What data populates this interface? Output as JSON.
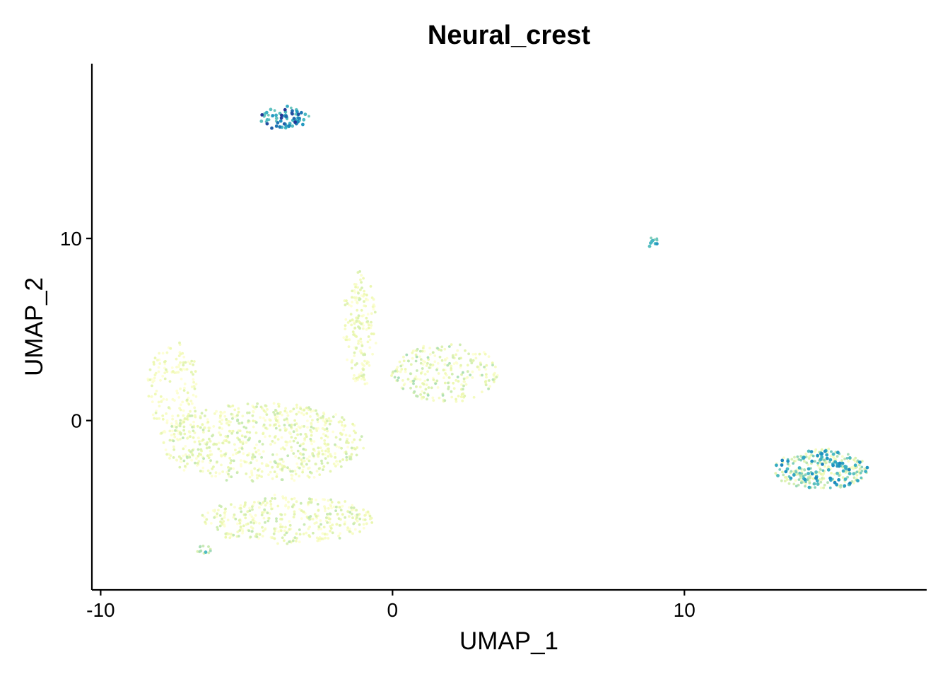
{
  "chart_data": {
    "type": "scatter",
    "title": "Neural_crest",
    "xlabel": "UMAP_1",
    "ylabel": "UMAP_2",
    "xlim": [
      -10.3,
      18.3
    ],
    "ylim": [
      -9.3,
      19.6
    ],
    "x_ticks": [
      -10,
      0,
      10
    ],
    "x_tick_labels": [
      "-10",
      "0",
      "10"
    ],
    "y_ticks": [
      0,
      10
    ],
    "y_tick_labels": [
      "0",
      "10"
    ],
    "grid": false,
    "legend": "none",
    "color_scale": [
      "#ffffd9",
      "#edf8b1",
      "#c7e9b4",
      "#7fcdbb",
      "#41b6c4",
      "#1d91c0",
      "#225ea8",
      "#253494"
    ],
    "clusters": [
      {
        "cx": -3.7,
        "cy": 16.6,
        "rx": 0.8,
        "ry": 0.6,
        "count": 70,
        "level_min": 0.45,
        "level_max": 1.0
      },
      {
        "cx": 8.9,
        "cy": 9.8,
        "rx": 0.25,
        "ry": 0.25,
        "count": 12,
        "level_min": 0.4,
        "level_max": 0.7
      },
      {
        "cx": 14.7,
        "cy": -2.7,
        "rx": 1.6,
        "ry": 1.1,
        "count": 320,
        "level_min": 0.05,
        "level_max": 0.75
      },
      {
        "cx": -4.5,
        "cy": -1.2,
        "rx": 3.5,
        "ry": 2.2,
        "count": 700,
        "level_min": 0.0,
        "level_max": 0.3
      },
      {
        "cx": -1.1,
        "cy": 5.0,
        "rx": 0.5,
        "ry": 3.2,
        "count": 170,
        "level_min": 0.0,
        "level_max": 0.25
      },
      {
        "cx": 1.8,
        "cy": 2.6,
        "rx": 1.8,
        "ry": 1.6,
        "count": 260,
        "level_min": 0.0,
        "level_max": 0.35
      },
      {
        "cx": -7.5,
        "cy": 1.5,
        "rx": 0.9,
        "ry": 2.8,
        "count": 160,
        "level_min": 0.0,
        "level_max": 0.2
      },
      {
        "cx": -3.6,
        "cy": -5.4,
        "rx": 2.9,
        "ry": 1.3,
        "count": 380,
        "level_min": 0.0,
        "level_max": 0.3
      },
      {
        "cx": -6.4,
        "cy": -7.1,
        "rx": 0.4,
        "ry": 0.2,
        "count": 15,
        "level_min": 0.2,
        "level_max": 0.6
      }
    ]
  }
}
